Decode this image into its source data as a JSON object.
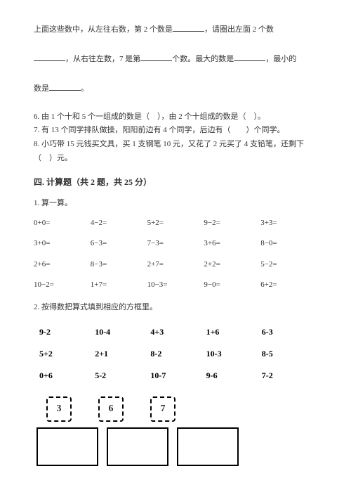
{
  "intro": {
    "p1a": "上面这些数中，从左往右数，第 2 个数是",
    "p1b": "，请圈出左面 2 个数",
    "p2a": "，从右往左数，7 是第",
    "p2b": "个数。最大的数是",
    "p2c": "，最小的",
    "p3a": "数是",
    "p3b": "。"
  },
  "q6": "6. 由 1 个十和 5 个一组成的数是（　），由 2 个十组成的数是（　）。",
  "q7": "7. 有 13 个同学排队做操，阳阳前边有 4 个同学，后边有（　　）个同学。",
  "q8": "8. 小巧带 15 元钱买文具，买 1 支钢笔 10 元，又花了 2 元买了 4 支铅笔，还剩下（　）元。",
  "section4": "四. 计算题（共 2 题，共 25 分）",
  "s1_label": "1. 算一算。",
  "calc": [
    "0+0=",
    "4−2=",
    "5+2=",
    "9−2=",
    "3+3=",
    "3+0=",
    "6−3=",
    "7−3=",
    "3+6=",
    "8−0=",
    "2+6=",
    "8−3=",
    "2+7=",
    "2+2=",
    "5−2=",
    "10−2=",
    "1+7=",
    "10−3=",
    "9−0=",
    "6+2="
  ],
  "s2_label": "2. 按得数把算式填到相应的方框里。",
  "expr": [
    "9-2",
    "10-4",
    "4+3",
    "1+6",
    "6-3",
    "5+2",
    "2+1",
    "8-2",
    "10-3",
    "8-5",
    "0+6",
    "5-2",
    "10-7",
    "9-6",
    "7-2"
  ],
  "targets": [
    "3",
    "6",
    "7"
  ]
}
